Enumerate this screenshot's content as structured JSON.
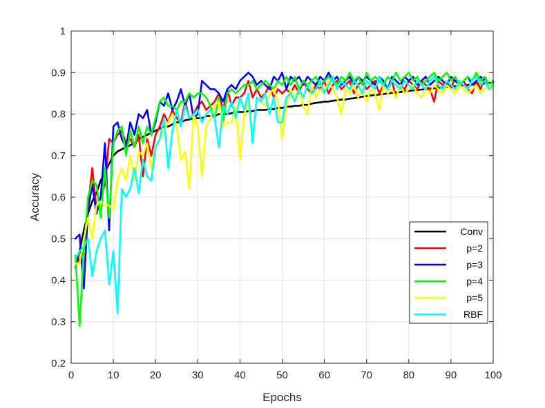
{
  "chart_data": {
    "type": "line",
    "xlabel": "Epochs",
    "ylabel": "Accuracy",
    "xlim": [
      0,
      100
    ],
    "ylim": [
      0.2,
      1
    ],
    "xticks": [
      0,
      10,
      20,
      30,
      40,
      50,
      60,
      70,
      80,
      90,
      100
    ],
    "yticks": [
      0.2,
      0.3,
      0.4,
      0.5,
      0.6,
      0.7,
      0.8,
      0.9,
      1
    ],
    "xtick_labels": [
      "0",
      "10",
      "20",
      "30",
      "40",
      "50",
      "60",
      "70",
      "80",
      "90",
      "100"
    ],
    "ytick_labels": [
      "0.2",
      "0.3",
      "0.4",
      "0.5",
      "0.6",
      "0.7",
      "0.8",
      "0.9",
      "1"
    ],
    "grid": true,
    "legend_position": "lower-right",
    "series": [
      {
        "name": "Conv",
        "color": "#000000",
        "values": [
          0.43,
          0.47,
          0.52,
          0.56,
          0.59,
          0.61,
          0.64,
          0.66,
          0.68,
          0.7,
          0.71,
          0.715,
          0.72,
          0.725,
          0.73,
          0.74,
          0.745,
          0.75,
          0.755,
          0.76,
          0.765,
          0.77,
          0.77,
          0.775,
          0.78,
          0.78,
          0.785,
          0.787,
          0.79,
          0.79,
          0.79,
          0.795,
          0.795,
          0.795,
          0.8,
          0.8,
          0.8,
          0.802,
          0.805,
          0.805,
          0.805,
          0.807,
          0.807,
          0.81,
          0.81,
          0.81,
          0.812,
          0.812,
          0.815,
          0.815,
          0.818,
          0.818,
          0.82,
          0.82,
          0.822,
          0.822,
          0.825,
          0.827,
          0.828,
          0.83,
          0.83,
          0.832,
          0.833,
          0.835,
          0.835,
          0.837,
          0.838,
          0.84,
          0.842,
          0.843,
          0.845,
          0.846,
          0.847,
          0.848,
          0.85,
          0.851,
          0.852,
          0.853,
          0.855,
          0.856,
          0.857,
          0.858,
          0.859,
          0.86,
          0.861,
          0.862,
          0.863,
          0.864,
          0.865,
          0.866,
          0.867,
          0.868,
          0.869,
          0.87,
          0.871,
          0.872,
          0.873,
          0.874,
          0.875,
          0.876
        ]
      },
      {
        "name": "p=2",
        "color": "#ff0000",
        "values": [
          0.44,
          0.45,
          0.47,
          0.58,
          0.67,
          0.57,
          0.6,
          0.63,
          0.74,
          0.73,
          0.75,
          0.76,
          0.73,
          0.74,
          0.72,
          0.75,
          0.65,
          0.74,
          0.7,
          0.75,
          0.77,
          0.8,
          0.78,
          0.81,
          0.79,
          0.78,
          0.83,
          0.79,
          0.8,
          0.82,
          0.83,
          0.81,
          0.82,
          0.83,
          0.85,
          0.81,
          0.86,
          0.82,
          0.84,
          0.84,
          0.85,
          0.88,
          0.84,
          0.86,
          0.84,
          0.85,
          0.87,
          0.84,
          0.86,
          0.85,
          0.86,
          0.85,
          0.87,
          0.85,
          0.88,
          0.86,
          0.85,
          0.87,
          0.86,
          0.88,
          0.85,
          0.87,
          0.88,
          0.86,
          0.87,
          0.88,
          0.85,
          0.87,
          0.88,
          0.86,
          0.87,
          0.88,
          0.85,
          0.87,
          0.86,
          0.88,
          0.84,
          0.87,
          0.86,
          0.88,
          0.87,
          0.86,
          0.88,
          0.87,
          0.86,
          0.83,
          0.88,
          0.87,
          0.88,
          0.86,
          0.89,
          0.87,
          0.88,
          0.86,
          0.85,
          0.88,
          0.86,
          0.89,
          0.87,
          0.88
        ]
      },
      {
        "name": "p=3",
        "color": "#0000ff",
        "values": [
          0.5,
          0.51,
          0.38,
          0.57,
          0.63,
          0.56,
          0.6,
          0.73,
          0.52,
          0.77,
          0.78,
          0.74,
          0.72,
          0.78,
          0.75,
          0.8,
          0.79,
          0.81,
          0.75,
          0.78,
          0.83,
          0.82,
          0.85,
          0.81,
          0.83,
          0.86,
          0.82,
          0.85,
          0.79,
          0.8,
          0.88,
          0.87,
          0.86,
          0.86,
          0.85,
          0.83,
          0.86,
          0.87,
          0.86,
          0.88,
          0.89,
          0.9,
          0.89,
          0.87,
          0.88,
          0.87,
          0.86,
          0.89,
          0.88,
          0.9,
          0.86,
          0.89,
          0.88,
          0.89,
          0.87,
          0.89,
          0.88,
          0.87,
          0.89,
          0.88,
          0.9,
          0.88,
          0.89,
          0.87,
          0.88,
          0.89,
          0.87,
          0.89,
          0.88,
          0.89,
          0.88,
          0.87,
          0.89,
          0.88,
          0.86,
          0.89,
          0.88,
          0.87,
          0.89,
          0.88,
          0.89,
          0.87,
          0.88,
          0.89,
          0.87,
          0.88,
          0.89,
          0.88,
          0.87,
          0.89,
          0.88,
          0.87,
          0.88,
          0.89,
          0.87,
          0.88,
          0.89,
          0.88,
          0.87,
          0.88
        ]
      },
      {
        "name": "p=4",
        "color": "#00ff00",
        "values": [
          0.46,
          0.29,
          0.47,
          0.6,
          0.64,
          0.63,
          0.55,
          0.67,
          0.55,
          0.73,
          0.76,
          0.77,
          0.7,
          0.76,
          0.72,
          0.77,
          0.73,
          0.77,
          0.75,
          0.79,
          0.83,
          0.84,
          0.82,
          0.82,
          0.81,
          0.83,
          0.83,
          0.85,
          0.84,
          0.85,
          0.85,
          0.84,
          0.82,
          0.79,
          0.84,
          0.78,
          0.85,
          0.86,
          0.85,
          0.86,
          0.87,
          0.87,
          0.88,
          0.86,
          0.87,
          0.88,
          0.87,
          0.86,
          0.88,
          0.87,
          0.89,
          0.87,
          0.89,
          0.86,
          0.88,
          0.87,
          0.88,
          0.89,
          0.87,
          0.88,
          0.89,
          0.88,
          0.87,
          0.89,
          0.88,
          0.9,
          0.88,
          0.89,
          0.87,
          0.9,
          0.88,
          0.89,
          0.88,
          0.87,
          0.89,
          0.88,
          0.9,
          0.88,
          0.89,
          0.9,
          0.88,
          0.89,
          0.87,
          0.88,
          0.89,
          0.9,
          0.88,
          0.89,
          0.9,
          0.88,
          0.89,
          0.87,
          0.88,
          0.89,
          0.88,
          0.9,
          0.88,
          0.89,
          0.87,
          0.88
        ]
      },
      {
        "name": "p=5",
        "color": "#ffff00",
        "values": [
          0.44,
          0.44,
          0.5,
          0.55,
          0.5,
          0.58,
          0.59,
          0.58,
          0.58,
          0.57,
          0.64,
          0.67,
          0.64,
          0.7,
          0.64,
          0.71,
          0.7,
          0.73,
          0.67,
          0.72,
          0.74,
          0.76,
          0.78,
          0.8,
          0.77,
          0.69,
          0.71,
          0.62,
          0.8,
          0.77,
          0.65,
          0.77,
          0.79,
          0.82,
          0.83,
          0.77,
          0.78,
          0.78,
          0.82,
          0.69,
          0.8,
          0.83,
          0.73,
          0.84,
          0.83,
          0.82,
          0.85,
          0.86,
          0.83,
          0.74,
          0.82,
          0.86,
          0.84,
          0.86,
          0.82,
          0.8,
          0.87,
          0.84,
          0.86,
          0.85,
          0.88,
          0.86,
          0.84,
          0.8,
          0.86,
          0.85,
          0.87,
          0.84,
          0.86,
          0.83,
          0.86,
          0.85,
          0.81,
          0.87,
          0.85,
          0.86,
          0.84,
          0.87,
          0.85,
          0.86,
          0.87,
          0.85,
          0.84,
          0.86,
          0.85,
          0.87,
          0.86,
          0.85,
          0.87,
          0.86,
          0.85,
          0.87,
          0.86,
          0.85,
          0.86,
          0.87,
          0.85,
          0.86,
          0.87,
          0.86
        ]
      },
      {
        "name": "RBF",
        "color": "#00ffff",
        "values": [
          0.45,
          0.47,
          0.48,
          0.5,
          0.41,
          0.47,
          0.5,
          0.52,
          0.39,
          0.47,
          0.32,
          0.62,
          0.6,
          0.62,
          0.67,
          0.61,
          0.69,
          0.65,
          0.64,
          0.72,
          0.74,
          0.79,
          0.67,
          0.76,
          0.81,
          0.77,
          0.82,
          0.79,
          0.8,
          0.81,
          0.78,
          0.8,
          0.81,
          0.79,
          0.72,
          0.82,
          0.8,
          0.83,
          0.79,
          0.84,
          0.81,
          0.85,
          0.73,
          0.84,
          0.83,
          0.85,
          0.8,
          0.84,
          0.78,
          0.78,
          0.84,
          0.85,
          0.83,
          0.86,
          0.84,
          0.87,
          0.85,
          0.86,
          0.88,
          0.85,
          0.87,
          0.89,
          0.86,
          0.88,
          0.87,
          0.86,
          0.88,
          0.87,
          0.85,
          0.88,
          0.87,
          0.86,
          0.89,
          0.87,
          0.86,
          0.88,
          0.87,
          0.86,
          0.88,
          0.87,
          0.86,
          0.88,
          0.87,
          0.86,
          0.88,
          0.89,
          0.87,
          0.86,
          0.88,
          0.87,
          0.86,
          0.88,
          0.87,
          0.86,
          0.88,
          0.89,
          0.87,
          0.88,
          0.86,
          0.87
        ]
      }
    ]
  }
}
